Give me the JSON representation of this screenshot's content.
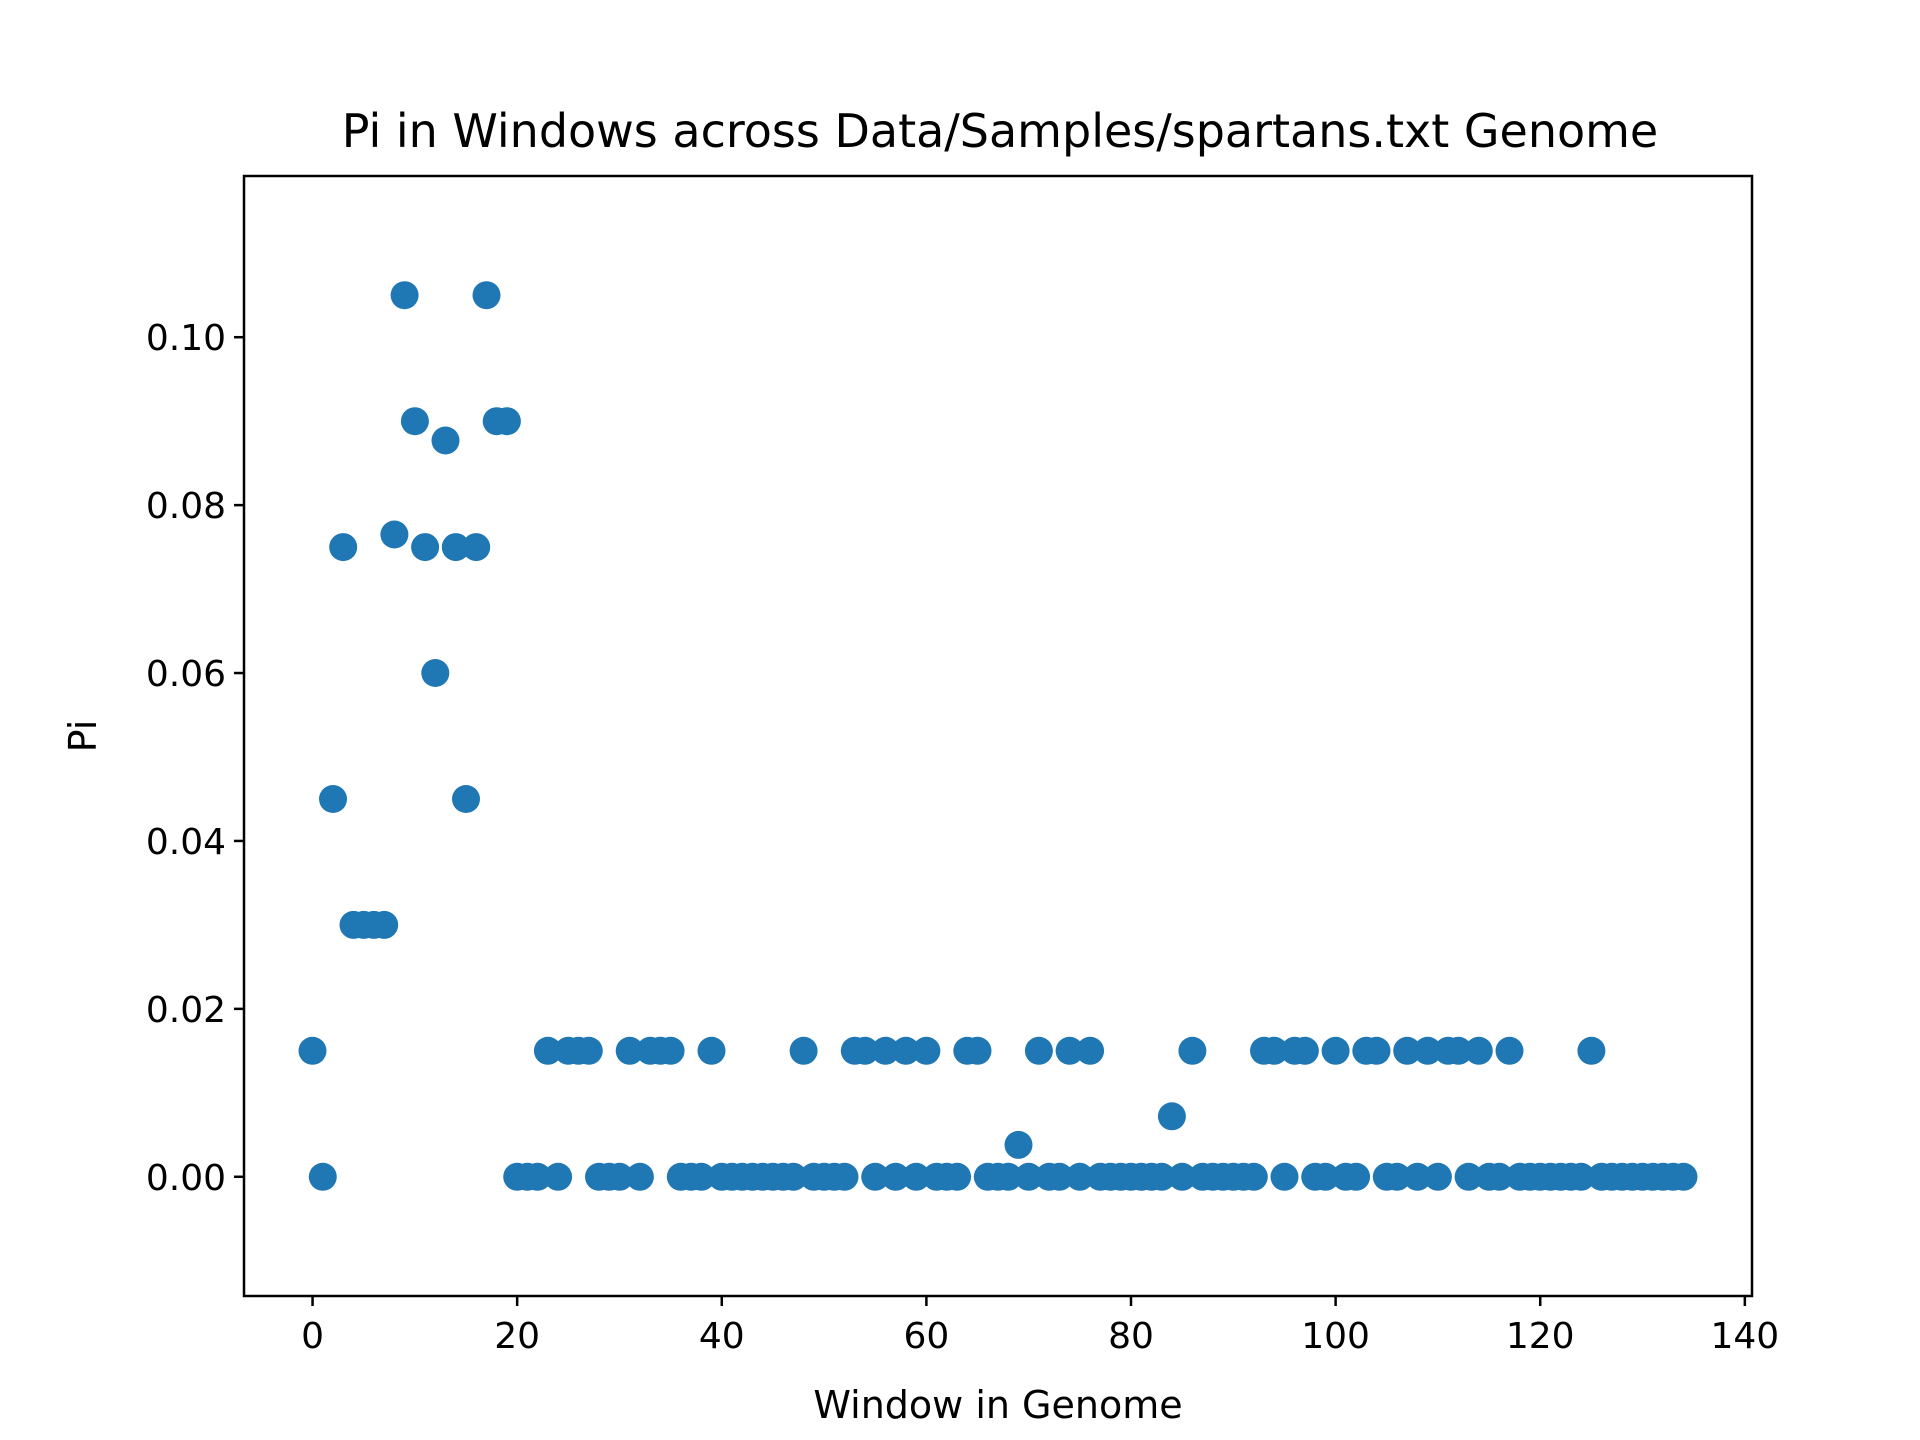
{
  "chart_data": {
    "type": "scatter",
    "title": "Pi in Windows across Data/Samples/spartans.txt Genome",
    "xlabel": "Window in Genome",
    "ylabel": "Pi",
    "xlim": [
      -6.7,
      140.7
    ],
    "ylim": [
      -0.0142,
      0.1192
    ],
    "xticks": [
      0,
      20,
      40,
      60,
      80,
      100,
      120,
      140
    ],
    "yticks": [
      0.0,
      0.02,
      0.04,
      0.06,
      0.08,
      0.1
    ],
    "xtick_labels": [
      "0",
      "20",
      "40",
      "60",
      "80",
      "100",
      "120",
      "140"
    ],
    "ytick_labels": [
      "0.00",
      "0.02",
      "0.04",
      "0.06",
      "0.08",
      "0.10"
    ],
    "grid": false,
    "marker_color": "#1f77b4",
    "series": [
      {
        "x": [
          0,
          1,
          2,
          3,
          4,
          5,
          6,
          7,
          8,
          9,
          10,
          11,
          12,
          13,
          14,
          15,
          16,
          17,
          18,
          19,
          20,
          21,
          22,
          23,
          24,
          25,
          26,
          27,
          28,
          29,
          30,
          31,
          32,
          33,
          34,
          35,
          36,
          37,
          38,
          39,
          40,
          41,
          42,
          43,
          44,
          45,
          46,
          47,
          48,
          49,
          50,
          51,
          52,
          53,
          54,
          55,
          56,
          57,
          58,
          59,
          60,
          61,
          62,
          63,
          64,
          65,
          66,
          67,
          68,
          69,
          70,
          71,
          72,
          73,
          74,
          75,
          76,
          77,
          78,
          79,
          80,
          81,
          82,
          83,
          84,
          85,
          86,
          87,
          88,
          89,
          90,
          91,
          92,
          93,
          94,
          95,
          96,
          97,
          98,
          99,
          100,
          101,
          102,
          103,
          104,
          105,
          106,
          107,
          108,
          109,
          110,
          111,
          112,
          113,
          114,
          115,
          116,
          117,
          118,
          119,
          120,
          121,
          122,
          123,
          124,
          125,
          126,
          127,
          128,
          129,
          130,
          131,
          132,
          133,
          134
        ],
        "y": [
          0.015,
          0.0,
          0.045,
          0.075,
          0.03,
          0.03,
          0.03,
          0.03,
          0.0765,
          0.105,
          0.09,
          0.075,
          0.06,
          0.0877,
          0.075,
          0.045,
          0.075,
          0.105,
          0.09,
          0.09,
          0.0,
          0.0,
          0.0,
          0.015,
          0.0,
          0.015,
          0.015,
          0.015,
          0.0,
          0.0,
          0.0,
          0.015,
          0.0,
          0.015,
          0.015,
          0.015,
          0.0,
          0.0,
          0.0,
          0.015,
          0.0,
          0.0,
          0.0,
          0.0,
          0.0,
          0.0,
          0.0,
          0.0,
          0.015,
          0.0,
          0.0,
          0.0,
          0.0,
          0.015,
          0.015,
          0.0,
          0.015,
          0.0,
          0.015,
          0.0,
          0.015,
          0.0,
          0.0,
          0.0,
          0.015,
          0.015,
          0.0,
          0.0,
          0.0,
          0.0038,
          0.0,
          0.015,
          0.0,
          0.0,
          0.015,
          0.0,
          0.015,
          0.0,
          0.0,
          0.0,
          0.0,
          0.0,
          0.0,
          0.0,
          0.0072,
          0.0,
          0.015,
          0.0,
          0.0,
          0.0,
          0.0,
          0.0,
          0.0,
          0.015,
          0.015,
          0.0,
          0.015,
          0.015,
          0.0,
          0.0,
          0.015,
          0.0,
          0.0,
          0.015,
          0.015,
          0.0,
          0.0,
          0.015,
          0.0,
          0.015,
          0.0,
          0.015,
          0.015,
          0.0,
          0.015,
          0.0,
          0.0,
          0.015,
          0.0,
          0.0,
          0.0,
          0.0,
          0.0,
          0.0,
          0.0,
          0.015,
          0.0,
          0.0,
          0.0,
          0.0,
          0.0,
          0.0,
          0.0,
          0.0,
          0.0
        ]
      }
    ]
  }
}
